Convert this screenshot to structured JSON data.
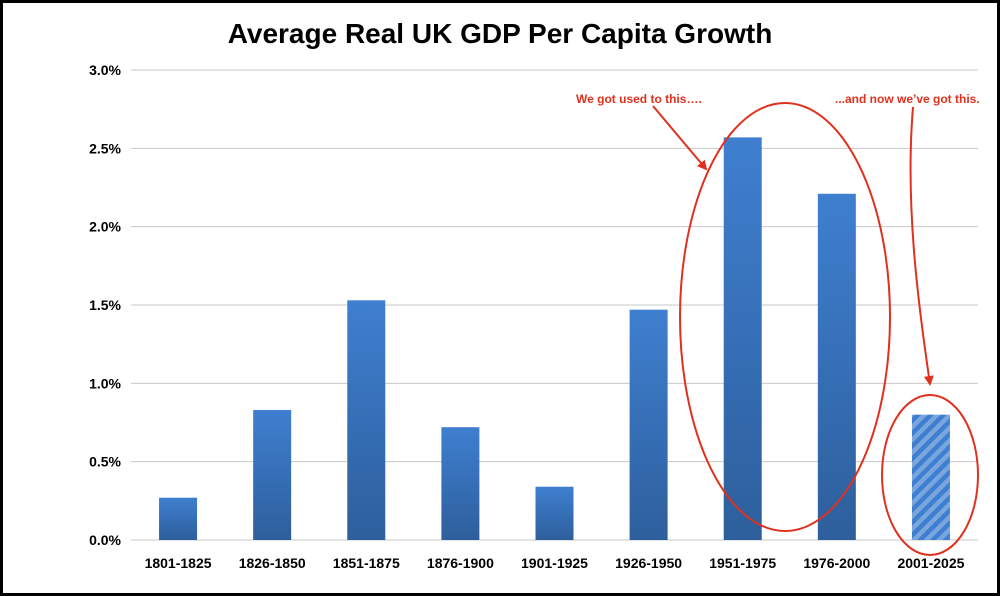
{
  "chart_data": {
    "type": "bar",
    "title": "Average Real UK GDP Per Capita Growth",
    "xlabel": "",
    "ylabel": "",
    "ylim": [
      0,
      3.0
    ],
    "yticks": [
      "0.0%",
      "0.5%",
      "1.0%",
      "1.5%",
      "2.0%",
      "2.5%",
      "3.0%"
    ],
    "ytick_values": [
      0,
      0.5,
      1.0,
      1.5,
      2.0,
      2.5,
      3.0
    ],
    "grid": true,
    "categories": [
      "1801-1825",
      "1826-1850",
      "1851-1875",
      "1876-1900",
      "1901-1925",
      "1926-1950",
      "1951-1975",
      "1976-2000",
      "2001-2025"
    ],
    "values": [
      0.27,
      0.83,
      1.53,
      0.72,
      0.34,
      1.47,
      2.57,
      2.21,
      0.8
    ],
    "hatched": [
      false,
      false,
      false,
      false,
      false,
      false,
      false,
      false,
      true
    ],
    "annotations": [
      {
        "text": "We got used to this….",
        "color": "#e0301e"
      },
      {
        "text": "...and now we’ve got this.",
        "color": "#e0301e"
      }
    ],
    "colors": {
      "bar_top": "#3f7fd0",
      "bar_bottom": "#2d5f9c",
      "grid": "#c8c8c8",
      "annotation": "#e0301e"
    }
  }
}
